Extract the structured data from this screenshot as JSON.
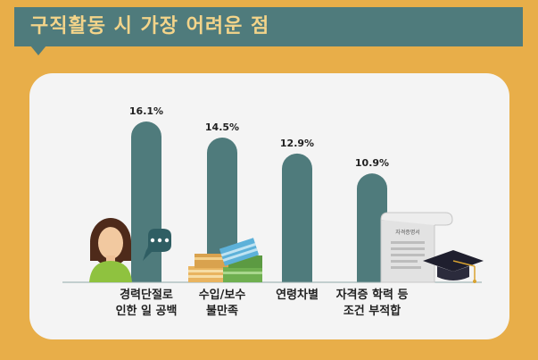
{
  "title": "구직활동 시 가장 어려운 점",
  "colors": {
    "frame": "#E8AE49",
    "banner": "#4F7B7C",
    "title": "#F3D48A",
    "bar": "#4F7B7C",
    "panel": "#F4F4F4",
    "label_text": "#222222"
  },
  "icons": [
    "woman-avatar-icon",
    "speech-bubble-icon",
    "money-stack-icon",
    "certificate-scroll-icon",
    "graduation-cap-icon"
  ],
  "certificate_text": "자격증명서",
  "chart_data": {
    "type": "bar",
    "categories": [
      [
        "경력단절로",
        "인한 일 공백"
      ],
      [
        "수입/보수",
        "불만족"
      ],
      [
        "연령차별"
      ],
      [
        "자격증 학력 등",
        "조건 부적합"
      ]
    ],
    "values": [
      16.1,
      14.5,
      12.9,
      10.9
    ],
    "value_labels": [
      "16.1%",
      "14.5%",
      "12.9%",
      "10.9%"
    ],
    "ylim": [
      0,
      17
    ]
  }
}
